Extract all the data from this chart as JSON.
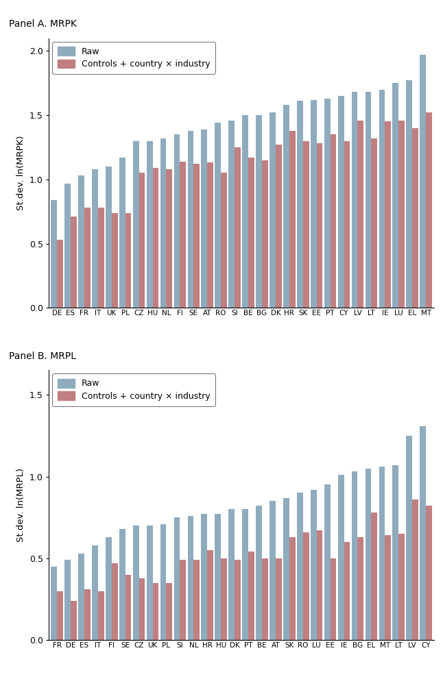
{
  "panel_a": {
    "title": "Panel A. MRPK",
    "ylabel": "St.dev. ln(MRPK)",
    "ylim": [
      0,
      2.1
    ],
    "yticks": [
      0,
      0.5,
      1.0,
      1.5,
      2.0
    ],
    "countries": [
      "DE",
      "ES",
      "FR",
      "IT",
      "UK",
      "PL",
      "CZ",
      "HU",
      "NL",
      "FI",
      "SE",
      "AT",
      "RO",
      "SI",
      "BE",
      "BG",
      "DK",
      "HR",
      "SK",
      "EE",
      "PT",
      "CY",
      "LV",
      "LT",
      "IE",
      "LU",
      "EL",
      "MT"
    ],
    "raw": [
      0.84,
      0.97,
      1.03,
      1.08,
      1.1,
      1.17,
      1.3,
      1.3,
      1.32,
      1.35,
      1.38,
      1.39,
      1.44,
      1.46,
      1.5,
      1.5,
      1.52,
      1.58,
      1.61,
      1.62,
      1.63,
      1.65,
      1.68,
      1.68,
      1.7,
      1.75,
      1.77,
      1.97
    ],
    "residual": [
      0.53,
      0.71,
      0.78,
      0.78,
      0.74,
      0.74,
      1.05,
      1.09,
      1.08,
      1.14,
      1.12,
      1.13,
      1.05,
      1.25,
      1.17,
      1.15,
      1.27,
      1.38,
      1.3,
      1.28,
      1.35,
      1.3,
      1.46,
      1.32,
      1.45,
      1.46,
      1.4,
      1.52
    ]
  },
  "panel_b": {
    "title": "Panel B. MRPL",
    "ylabel": "St.dev. ln(MRPL)",
    "ylim": [
      0,
      1.65
    ],
    "yticks": [
      0,
      0.5,
      1.0,
      1.5
    ],
    "countries": [
      "FR",
      "DE",
      "ES",
      "IT",
      "FI",
      "SE",
      "CZ",
      "UK",
      "PL",
      "SI",
      "NL",
      "HR",
      "HU",
      "DK",
      "PT",
      "BE",
      "AT",
      "SK",
      "RO",
      "LU",
      "EE",
      "IE",
      "BG",
      "EL",
      "MT",
      "LT",
      "LV",
      "CY"
    ],
    "raw": [
      0.45,
      0.49,
      0.53,
      0.58,
      0.63,
      0.68,
      0.7,
      0.7,
      0.71,
      0.75,
      0.76,
      0.77,
      0.77,
      0.8,
      0.8,
      0.82,
      0.85,
      0.87,
      0.9,
      0.92,
      0.95,
      1.01,
      1.03,
      1.05,
      1.06,
      1.07,
      1.25,
      1.31
    ],
    "residual": [
      0.3,
      0.24,
      0.31,
      0.3,
      0.47,
      0.4,
      0.38,
      0.35,
      0.35,
      0.49,
      0.49,
      0.55,
      0.5,
      0.49,
      0.54,
      0.5,
      0.5,
      0.63,
      0.66,
      0.67,
      0.5,
      0.6,
      0.63,
      0.78,
      0.64,
      0.65,
      0.86,
      0.82
    ]
  },
  "bar_color_raw": "#8fabbe",
  "bar_color_residual": "#c07f80",
  "bar_width": 0.44,
  "legend_raw": "Raw",
  "legend_residual": "Controls + country × industry",
  "figure_bg": "#ffffff"
}
